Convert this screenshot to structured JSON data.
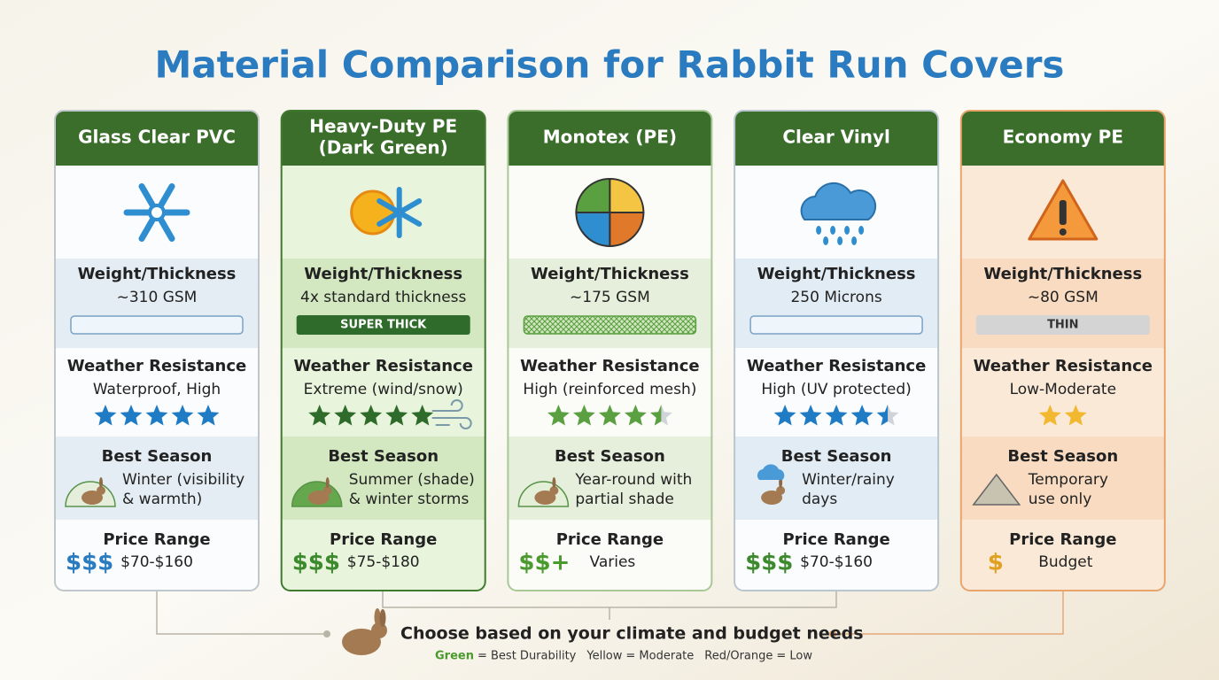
{
  "title": "Material Comparison for Rabbit Run Covers",
  "row_labels": {
    "weight": "Weight/Thickness",
    "weather": "Weather Resistance",
    "season": "Best Season",
    "price": "Price Range"
  },
  "cards": [
    {
      "name": [
        "Glass Clear PVC"
      ],
      "weight": "~310 GSM",
      "weather": "Waterproof, High",
      "rating": 5,
      "season": [
        "Winter (visibility",
        "& warmth)"
      ],
      "price_icon": "$$$",
      "price": "$70-$160"
    },
    {
      "name": [
        "Heavy-Duty PE",
        "(Dark Green)"
      ],
      "weight": "4x standard thickness",
      "badge": "SUPER THICK",
      "weather": "Extreme (wind/snow)",
      "rating": 5,
      "season": [
        "Summer (shade)",
        "& winter storms"
      ],
      "price_icon": "$$$",
      "price": "$75-$180"
    },
    {
      "name": [
        "Monotex (PE)"
      ],
      "weight": "~175 GSM",
      "weather": "High (reinforced mesh)",
      "rating": 4.5,
      "season": [
        "Year-round with",
        "partial shade"
      ],
      "price_icon": "$$+",
      "price": "Varies"
    },
    {
      "name": [
        "Clear Vinyl"
      ],
      "weight": "250 Microns",
      "weather": "High (UV protected)",
      "rating": 4.5,
      "season": [
        "Winter/rainy",
        "days"
      ],
      "price_icon": "$$$",
      "price": "$70-$160"
    },
    {
      "name": [
        "Economy PE"
      ],
      "weight": "~80 GSM",
      "badge": "THIN",
      "weather": "Low-Moderate",
      "rating": 2,
      "season": [
        "Temporary",
        "use only"
      ],
      "price_icon": "$",
      "price": "Budget"
    }
  ],
  "footer": {
    "text": "Choose based on your climate and budget needs",
    "legend": [
      {
        "key": "Green",
        "text": "= Best Durability"
      },
      {
        "key": "Yellow",
        "text": "= Moderate"
      },
      {
        "key": "Red/Orange",
        "text": "= Low"
      }
    ]
  }
}
